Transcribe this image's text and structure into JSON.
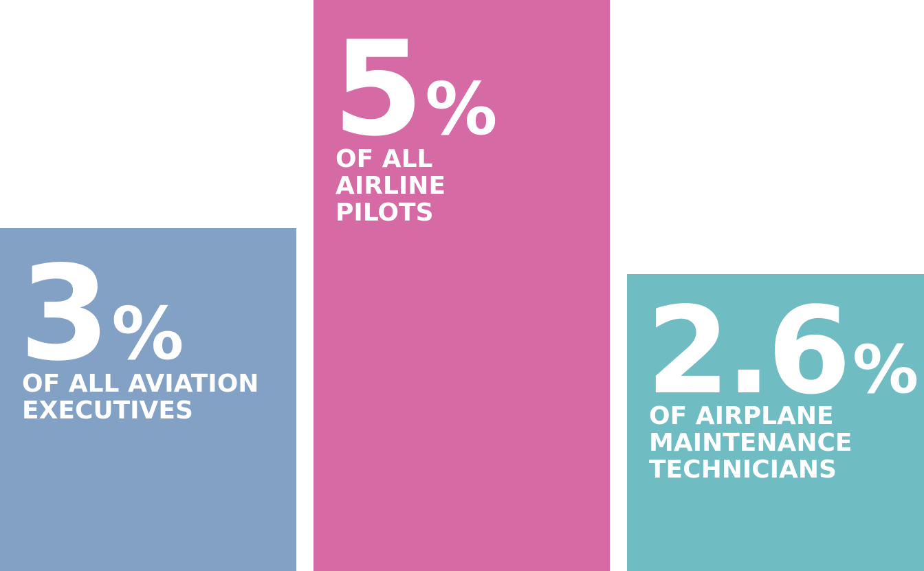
{
  "chart_data": {
    "type": "bar",
    "categories": [
      "of all aviation executives",
      "of all airline pilots",
      "of airplane maintenance technicians"
    ],
    "values": [
      3,
      5,
      2.6
    ],
    "value_labels": [
      "3",
      "5",
      "2.6"
    ],
    "unit": "%",
    "labels": [
      "OF ALL AVIATION\nEXECUTIVES",
      "OF ALL\nAIRLINE\nPILOTS",
      "OF AIRPLANE\nMAINTENANCE\nTECHNICIANS"
    ],
    "colors": [
      "#82A1C5",
      "#D66AA4",
      "#6FBCC3"
    ],
    "text_color": "#FFFFFF",
    "background": "#FFFFFF",
    "title": "",
    "xlabel": "",
    "ylabel": "",
    "ylim": [
      0,
      5
    ],
    "grid": false,
    "legend": "none",
    "axes_visible": false
  }
}
